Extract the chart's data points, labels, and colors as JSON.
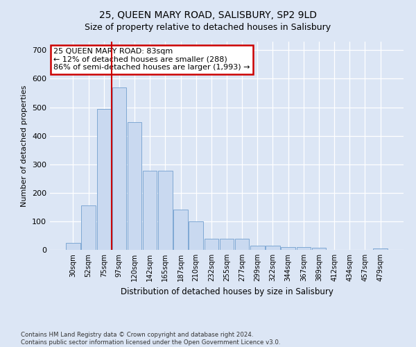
{
  "title1": "25, QUEEN MARY ROAD, SALISBURY, SP2 9LD",
  "title2": "Size of property relative to detached houses in Salisbury",
  "xlabel": "Distribution of detached houses by size in Salisbury",
  "ylabel": "Number of detached properties",
  "categories": [
    "30sqm",
    "52sqm",
    "75sqm",
    "97sqm",
    "120sqm",
    "142sqm",
    "165sqm",
    "187sqm",
    "210sqm",
    "232sqm",
    "255sqm",
    "277sqm",
    "299sqm",
    "322sqm",
    "344sqm",
    "367sqm",
    "389sqm",
    "412sqm",
    "434sqm",
    "457sqm",
    "479sqm"
  ],
  "values": [
    25,
    155,
    495,
    570,
    448,
    278,
    278,
    140,
    100,
    38,
    38,
    38,
    15,
    15,
    10,
    10,
    8,
    0,
    0,
    0,
    6
  ],
  "bar_color": "#c9d9f0",
  "bar_edge_color": "#7fa8d4",
  "redline_x": 2.5,
  "annotation_text": "25 QUEEN MARY ROAD: 83sqm\n← 12% of detached houses are smaller (288)\n86% of semi-detached houses are larger (1,993) →",
  "annotation_box_color": "white",
  "annotation_box_edge": "#cc0000",
  "ylim": [
    0,
    730
  ],
  "yticks": [
    0,
    100,
    200,
    300,
    400,
    500,
    600,
    700
  ],
  "footer1": "Contains HM Land Registry data © Crown copyright and database right 2024.",
  "footer2": "Contains public sector information licensed under the Open Government Licence v3.0.",
  "bg_color": "#dce6f5",
  "plot_bg_color": "#dce6f5",
  "grid_color": "#ffffff",
  "title_fontsize": 10,
  "subtitle_fontsize": 9
}
